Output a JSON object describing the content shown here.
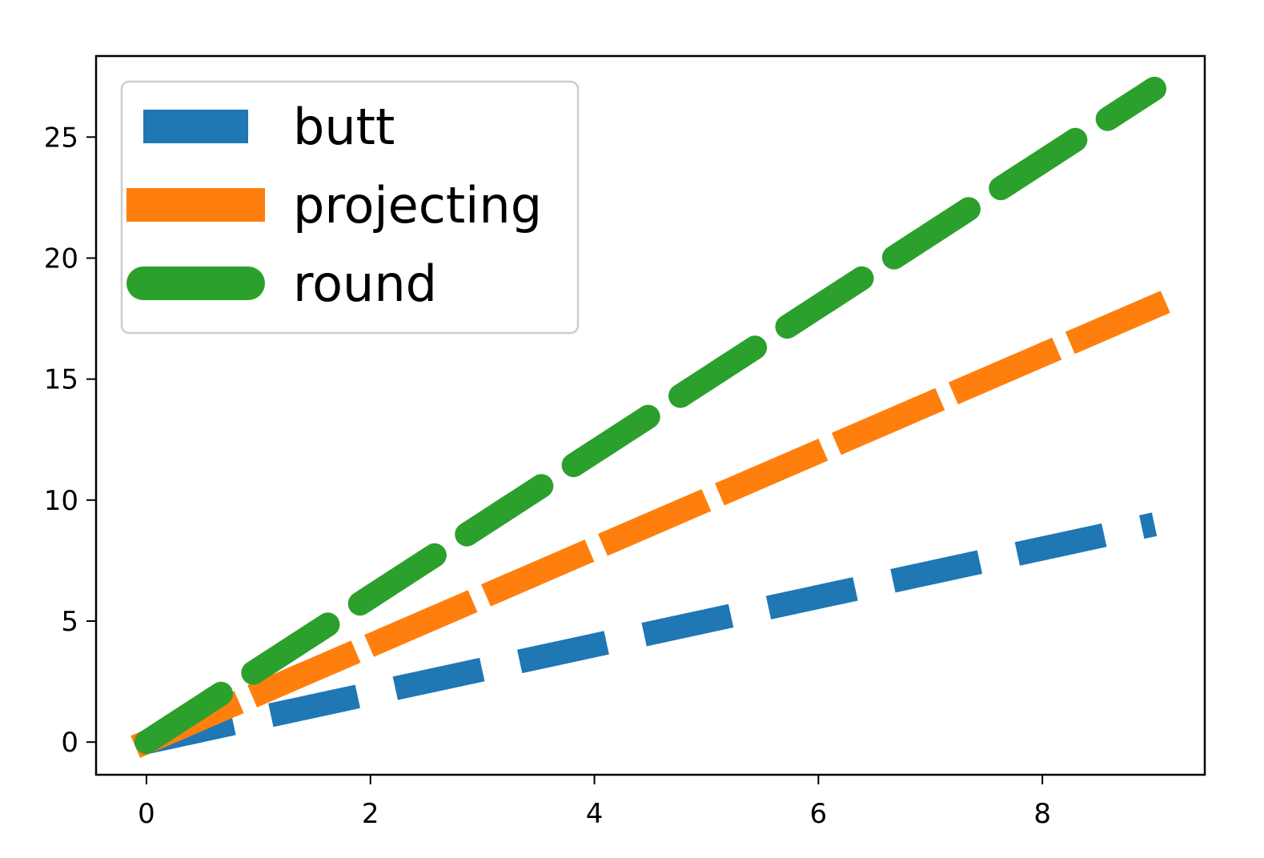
{
  "chart_data": {
    "type": "line",
    "title": "",
    "xlabel": "",
    "ylabel": "",
    "x": [
      0,
      1,
      2,
      3,
      4,
      5,
      6,
      7,
      8,
      9
    ],
    "xlim": [
      -0.45,
      9.45
    ],
    "ylim": [
      -1.35,
      28.35
    ],
    "x_ticks": [
      0,
      2,
      4,
      6,
      8
    ],
    "y_ticks": [
      0,
      5,
      10,
      15,
      20,
      25
    ],
    "grid": false,
    "legend_position": "upper-left",
    "series": [
      {
        "name": "butt",
        "values": [
          0,
          1,
          2,
          3,
          4,
          5,
          6,
          7,
          8,
          9
        ],
        "color": "#1f77b4",
        "line_style": "dashed",
        "cap_style": "butt"
      },
      {
        "name": "projecting",
        "values": [
          0,
          2,
          4,
          6,
          8,
          10,
          12,
          14,
          16,
          18
        ],
        "color": "#ff7f0e",
        "line_style": "dashed",
        "cap_style": "projecting"
      },
      {
        "name": "round",
        "values": [
          0,
          3,
          6,
          9,
          12,
          15,
          18,
          21,
          24,
          27
        ],
        "color": "#2ca02c",
        "line_style": "dashed",
        "cap_style": "round"
      }
    ]
  }
}
